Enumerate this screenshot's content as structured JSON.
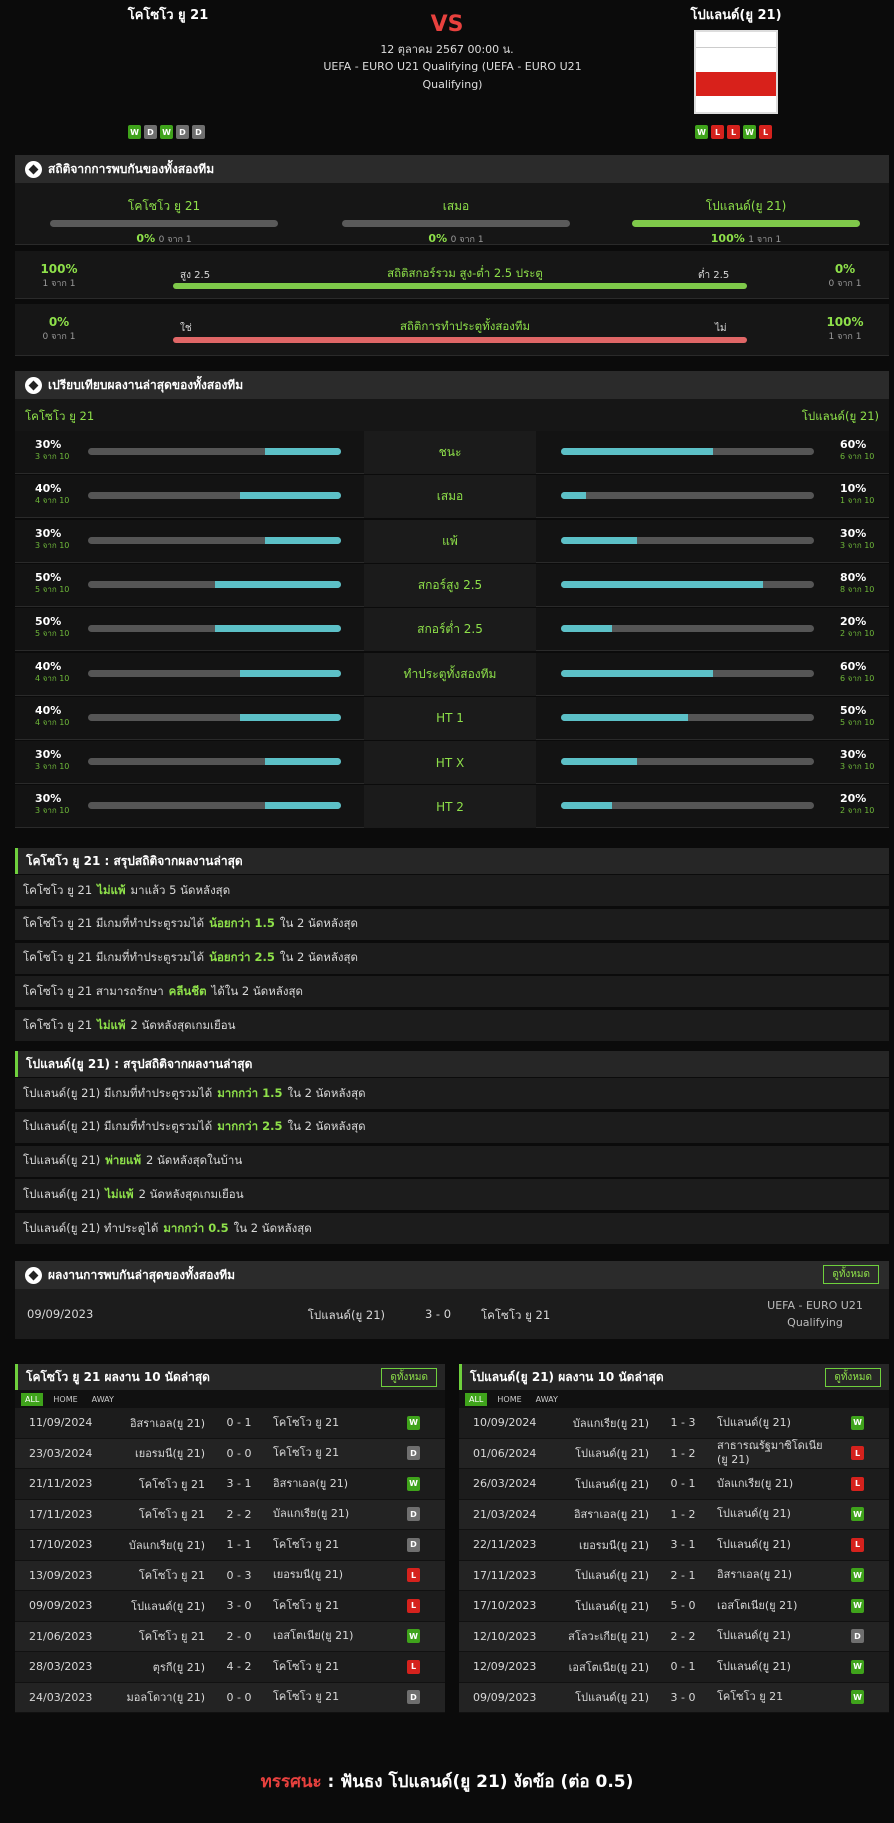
{
  "match": {
    "home": "โคโซโว ยู 21",
    "away": "โปแลนด์(ยู 21)",
    "vs": "VS",
    "date": "12 ตุลาคม 2567 00:00 น.",
    "league": "UEFA - EURO U21 Qualifying (UEFA - EURO U21 Qualifying)",
    "home_form": [
      "W",
      "D",
      "W",
      "D",
      "D"
    ],
    "away_form": [
      "W",
      "L",
      "L",
      "W",
      "L"
    ]
  },
  "h2h_stats": {
    "title": "สถิติจากการพบกันของทั้งสองทีม",
    "home": {
      "label": "โคโซโว ยู 21",
      "pct": "0%",
      "count": "0 จาก 1",
      "fill": 0
    },
    "draw": {
      "label": "เสมอ",
      "pct": "0%",
      "count": "0 จาก 1",
      "fill": 0
    },
    "away": {
      "label": "โปแลนด์(ยู 21)",
      "pct": "100%",
      "count": "1 จาก 1",
      "fill": 1
    },
    "ou": {
      "title": "สถิติสกอร์รวม สูง-ต่ำ 2.5 ประตู",
      "left_pct": "100%",
      "left_count": "1 จาก 1",
      "right_pct": "0%",
      "right_count": "0 จาก 1",
      "left_label": "สูง 2.5",
      "right_label": "ต่ำ 2.5"
    },
    "btts": {
      "title": "สถิติการทำประตูทั้งสองทีม",
      "left_pct": "0%",
      "left_count": "0 จาก 1",
      "right_pct": "100%",
      "right_count": "1 จาก 1",
      "left_label": "ใช่",
      "right_label": "ไม่"
    }
  },
  "compare": {
    "title": "เปรียบเทียบผลงานล่าสุดของทั้งสองทีม",
    "home": "โคโซโว ยู 21",
    "away": "โปแลนด์(ยู 21)",
    "rows": [
      {
        "label": "ชนะ",
        "l_pct": "30%",
        "l_cnt": "3 จาก 10",
        "l": 0.3,
        "r_pct": "60%",
        "r_cnt": "6 จาก 10",
        "r": 0.6
      },
      {
        "label": "เสมอ",
        "l_pct": "40%",
        "l_cnt": "4 จาก 10",
        "l": 0.4,
        "r_pct": "10%",
        "r_cnt": "1 จาก 10",
        "r": 0.1
      },
      {
        "label": "แพ้",
        "l_pct": "30%",
        "l_cnt": "3 จาก 10",
        "l": 0.3,
        "r_pct": "30%",
        "r_cnt": "3 จาก 10",
        "r": 0.3
      },
      {
        "label": "สกอร์สูง 2.5",
        "l_pct": "50%",
        "l_cnt": "5 จาก 10",
        "l": 0.5,
        "r_pct": "80%",
        "r_cnt": "8 จาก 10",
        "r": 0.8
      },
      {
        "label": "สกอร์ต่ำ 2.5",
        "l_pct": "50%",
        "l_cnt": "5 จาก 10",
        "l": 0.5,
        "r_pct": "20%",
        "r_cnt": "2 จาก 10",
        "r": 0.2
      },
      {
        "label": "ทำประตูทั้งสองทีม",
        "l_pct": "40%",
        "l_cnt": "4 จาก 10",
        "l": 0.4,
        "r_pct": "60%",
        "r_cnt": "6 จาก 10",
        "r": 0.6
      },
      {
        "label": "HT 1",
        "l_pct": "40%",
        "l_cnt": "4 จาก 10",
        "l": 0.4,
        "r_pct": "50%",
        "r_cnt": "5 จาก 10",
        "r": 0.5
      },
      {
        "label": "HT X",
        "l_pct": "30%",
        "l_cnt": "3 จาก 10",
        "l": 0.3,
        "r_pct": "30%",
        "r_cnt": "3 จาก 10",
        "r": 0.3
      },
      {
        "label": "HT 2",
        "l_pct": "30%",
        "l_cnt": "3 จาก 10",
        "l": 0.3,
        "r_pct": "20%",
        "r_cnt": "2 จาก 10",
        "r": 0.2
      }
    ]
  },
  "home_summary": {
    "title": "โคโซโว ยู 21 : สรุปสถิติจากผลงานล่าสุด",
    "rows": [
      [
        "โคโซโว ยู 21",
        "ไม่แพ้",
        "มาแล้ว 5 นัดหลังสุด"
      ],
      [
        "โคโซโว ยู 21 มีเกมที่ทำประตูรวมได้",
        "น้อยกว่า 1.5",
        "ใน 2 นัดหลังสุด"
      ],
      [
        "โคโซโว ยู 21 มีเกมที่ทำประตูรวมได้",
        "น้อยกว่า 2.5",
        "ใน 2 นัดหลังสุด"
      ],
      [
        "โคโซโว ยู 21 สามารถรักษา",
        "คลีนชีต",
        "ได้ใน 2 นัดหลังสุด"
      ],
      [
        "โคโซโว ยู 21",
        "ไม่แพ้",
        "2 นัดหลังสุดเกมเยือน"
      ]
    ]
  },
  "away_summary": {
    "title": "โปแลนด์(ยู 21) : สรุปสถิติจากผลงานล่าสุด",
    "rows": [
      [
        "โปแลนด์(ยู 21) มีเกมที่ทำประตูรวมได้",
        "มากกว่า 1.5",
        "ใน 2 นัดหลังสุด"
      ],
      [
        "โปแลนด์(ยู 21) มีเกมที่ทำประตูรวมได้",
        "มากกว่า 2.5",
        "ใน 2 นัดหลังสุด"
      ],
      [
        "โปแลนด์(ยู 21)",
        "พ่ายแพ้",
        "2 นัดหลังสุดในบ้าน"
      ],
      [
        "โปแลนด์(ยู 21)",
        "ไม่แพ้",
        "2 นัดหลังสุดเกมเยือน"
      ],
      [
        "โปแลนด์(ยู 21) ทำประตูได้",
        "มากกว่า 0.5",
        "ใน 2 นัดหลังสุด"
      ]
    ]
  },
  "h2h_results": {
    "title": "ผลงานการพบกันล่าสุดของทั้งสองทีม",
    "see_all": "ดูทั้งหมด",
    "date": "09/09/2023",
    "home": "โปแลนด์(ยู 21)",
    "score": "3 - 0",
    "away": "โคโซโว ยู 21",
    "league": "UEFA - EURO U21 Qualifying"
  },
  "tabs": [
    "ALL",
    "HOME",
    "AWAY"
  ],
  "home_last": {
    "title": "โคโซโว ยู 21 ผลงาน 10 นัดล่าสุด",
    "see_all": "ดูทั้งหมด",
    "rows": [
      [
        "11/09/2024",
        "อิสราเอล(ยู 21)",
        "0 - 1",
        "โคโซโว ยู 21",
        "W"
      ],
      [
        "23/03/2024",
        "เยอรมนี(ยู 21)",
        "0 - 0",
        "โคโซโว ยู 21",
        "D"
      ],
      [
        "21/11/2023",
        "โคโซโว ยู 21",
        "3 - 1",
        "อิสราเอล(ยู 21)",
        "W"
      ],
      [
        "17/11/2023",
        "โคโซโว ยู 21",
        "2 - 2",
        "บัลแกเรีย(ยู 21)",
        "D"
      ],
      [
        "17/10/2023",
        "บัลแกเรีย(ยู 21)",
        "1 - 1",
        "โคโซโว ยู 21",
        "D"
      ],
      [
        "13/09/2023",
        "โคโซโว ยู 21",
        "0 - 3",
        "เยอรมนี(ยู 21)",
        "L"
      ],
      [
        "09/09/2023",
        "โปแลนด์(ยู 21)",
        "3 - 0",
        "โคโซโว ยู 21",
        "L"
      ],
      [
        "21/06/2023",
        "โคโซโว ยู 21",
        "2 - 0",
        "เอสโตเนีย(ยู 21)",
        "W"
      ],
      [
        "28/03/2023",
        "ตุรกี(ยู 21)",
        "4 - 2",
        "โคโซโว ยู 21",
        "L"
      ],
      [
        "24/03/2023",
        "มอลโดวา(ยู 21)",
        "0 - 0",
        "โคโซโว ยู 21",
        "D"
      ]
    ]
  },
  "away_last": {
    "title": "โปแลนด์(ยู 21) ผลงาน 10 นัดล่าสุด",
    "see_all": "ดูทั้งหมด",
    "rows": [
      [
        "10/09/2024",
        "บัลแกเรีย(ยู 21)",
        "1 - 3",
        "โปแลนด์(ยู 21)",
        "W"
      ],
      [
        "01/06/2024",
        "โปแลนด์(ยู 21)",
        "1 - 2",
        "สาธารณรัฐมาซิโดเนีย (ยู 21)",
        "L"
      ],
      [
        "26/03/2024",
        "โปแลนด์(ยู 21)",
        "0 - 1",
        "บัลแกเรีย(ยู 21)",
        "L"
      ],
      [
        "21/03/2024",
        "อิสราเอล(ยู 21)",
        "1 - 2",
        "โปแลนด์(ยู 21)",
        "W"
      ],
      [
        "22/11/2023",
        "เยอรมนี(ยู 21)",
        "3 - 1",
        "โปแลนด์(ยู 21)",
        "L"
      ],
      [
        "17/11/2023",
        "โปแลนด์(ยู 21)",
        "2 - 1",
        "อิสราเอล(ยู 21)",
        "W"
      ],
      [
        "17/10/2023",
        "โปแลนด์(ยู 21)",
        "5 - 0",
        "เอสโตเนีย(ยู 21)",
        "W"
      ],
      [
        "12/10/2023",
        "สโลวะเกีย(ยู 21)",
        "2 - 2",
        "โปแลนด์(ยู 21)",
        "D"
      ],
      [
        "12/09/2023",
        "เอสโตเนีย(ยู 21)",
        "0 - 1",
        "โปแลนด์(ยู 21)",
        "W"
      ],
      [
        "09/09/2023",
        "โปแลนด์(ยู 21)",
        "3 - 0",
        "โคโซโว ยู 21",
        "W"
      ]
    ]
  },
  "prediction": {
    "label": "ทรรศนะ",
    "sep": " : ",
    "text": "ฟันธง โปแลนด์(ยู 21) งัดข้อ (ต่อ 0.5)"
  },
  "colors": {
    "accent": "#8ee04a",
    "bar_cyan": "#5cc0c7",
    "win": "#3fa31b",
    "loss": "#d5221d",
    "draw": "#6f6f6f",
    "vs": "#e8413e"
  }
}
